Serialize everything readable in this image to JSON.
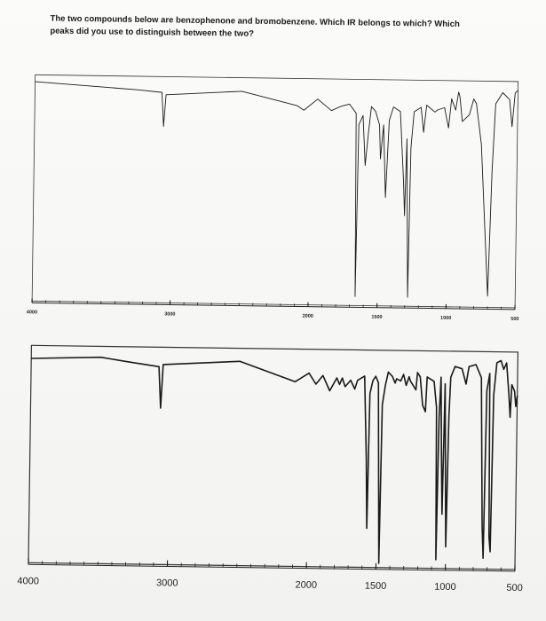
{
  "question": {
    "line1": "The two compounds below are benzophenone and bromobenzene. Which IR belongs to which? Which",
    "line2": "peaks did you use to distinguish between the two?"
  },
  "chart_data": [
    {
      "type": "line",
      "xlabel": "",
      "ylabel": "",
      "xlim": [
        4000,
        500
      ],
      "ylim": [
        0,
        100
      ],
      "x_ticks": [
        4000,
        3000,
        2000,
        1500,
        1000,
        500
      ],
      "x_tick_labels": [
        "4000",
        "3000",
        "2000",
        "1500",
        "1000",
        "500"
      ],
      "series": [
        {
          "points": [
            [
              4000,
              97
            ],
            [
              3500,
              95
            ],
            [
              3250,
              94
            ],
            [
              3080,
              93
            ],
            [
              3065,
              78
            ],
            [
              3050,
              92
            ],
            [
              2500,
              94
            ],
            [
              2100,
              88
            ],
            [
              2050,
              86
            ],
            [
              1950,
              91
            ],
            [
              1850,
              86
            ],
            [
              1780,
              88
            ],
            [
              1720,
              89
            ],
            [
              1670,
              85
            ],
            [
              1660,
              4
            ],
            [
              1650,
              80
            ],
            [
              1620,
              84
            ],
            [
              1600,
              62
            ],
            [
              1580,
              76
            ],
            [
              1560,
              88
            ],
            [
              1530,
              86
            ],
            [
              1500,
              80
            ],
            [
              1490,
              65
            ],
            [
              1470,
              80
            ],
            [
              1450,
              48
            ],
            [
              1430,
              82
            ],
            [
              1400,
              88
            ],
            [
              1350,
              86
            ],
            [
              1320,
              55
            ],
            [
              1310,
              40
            ],
            [
              1300,
              74
            ],
            [
              1280,
              4
            ],
            [
              1270,
              70
            ],
            [
              1250,
              86
            ],
            [
              1200,
              88
            ],
            [
              1180,
              77
            ],
            [
              1160,
              89
            ],
            [
              1100,
              86
            ],
            [
              1080,
              87
            ],
            [
              1030,
              88
            ],
            [
              1000,
              79
            ],
            [
              980,
              92
            ],
            [
              950,
              87
            ],
            [
              930,
              95
            ],
            [
              920,
              93
            ],
            [
              900,
              82
            ],
            [
              850,
              85
            ],
            [
              820,
              92
            ],
            [
              800,
              90
            ],
            [
              760,
              72
            ],
            [
              700,
              5
            ],
            [
              680,
              60
            ],
            [
              660,
              90
            ],
            [
              610,
              95
            ],
            [
              560,
              92
            ],
            [
              540,
              80
            ],
            [
              520,
              95
            ],
            [
              500,
              96
            ]
          ]
        }
      ]
    },
    {
      "type": "line",
      "xlabel": "",
      "ylabel": "",
      "xlim": [
        4000,
        500
      ],
      "ylim": [
        0,
        100
      ],
      "x_ticks": [
        4000,
        3000,
        2000,
        1500,
        1000,
        500
      ],
      "x_tick_labels": [
        "4000",
        "3000",
        "2000",
        "1500",
        "1000",
        "500"
      ],
      "series": [
        {
          "points": [
            [
              4000,
              94
            ],
            [
              3500,
              95
            ],
            [
              3300,
              93
            ],
            [
              3080,
              91
            ],
            [
              3065,
              72
            ],
            [
              3050,
              92
            ],
            [
              2500,
              94
            ],
            [
              2100,
              85
            ],
            [
              2000,
              89
            ],
            [
              1950,
              84
            ],
            [
              1900,
              88
            ],
            [
              1850,
              81
            ],
            [
              1800,
              87
            ],
            [
              1780,
              84
            ],
            [
              1760,
              87
            ],
            [
              1740,
              83
            ],
            [
              1700,
              86
            ],
            [
              1670,
              82
            ],
            [
              1650,
              86
            ],
            [
              1600,
              88
            ],
            [
              1580,
              50
            ],
            [
              1570,
              18
            ],
            [
              1560,
              80
            ],
            [
              1540,
              86
            ],
            [
              1520,
              88
            ],
            [
              1500,
              85
            ],
            [
              1480,
              2
            ],
            [
              1470,
              75
            ],
            [
              1450,
              84
            ],
            [
              1430,
              90
            ],
            [
              1400,
              88
            ],
            [
              1380,
              85
            ],
            [
              1370,
              87
            ],
            [
              1340,
              86
            ],
            [
              1320,
              89
            ],
            [
              1300,
              84
            ],
            [
              1280,
              88
            ],
            [
              1270,
              86
            ],
            [
              1250,
              84
            ],
            [
              1230,
              82
            ],
            [
              1220,
              90
            ],
            [
              1200,
              88
            ],
            [
              1180,
              75
            ],
            [
              1160,
              72
            ],
            [
              1150,
              88
            ],
            [
              1100,
              86
            ],
            [
              1080,
              74
            ],
            [
              1070,
              4
            ],
            [
              1060,
              70
            ],
            [
              1050,
              88
            ],
            [
              1040,
              52
            ],
            [
              1030,
              25
            ],
            [
              1020,
              85
            ],
            [
              1000,
              10
            ],
            [
              990,
              70
            ],
            [
              980,
              88
            ],
            [
              950,
              93
            ],
            [
              900,
              92
            ],
            [
              870,
              85
            ],
            [
              850,
              93
            ],
            [
              800,
              94
            ],
            [
              760,
              88
            ],
            [
              740,
              20
            ],
            [
              730,
              5
            ],
            [
              720,
              82
            ],
            [
              700,
              90
            ],
            [
              690,
              15
            ],
            [
              680,
              8
            ],
            [
              670,
              80
            ],
            [
              650,
              95
            ],
            [
              620,
              96
            ],
            [
              600,
              92
            ],
            [
              580,
              95
            ],
            [
              560,
              80
            ],
            [
              550,
              70
            ],
            [
              540,
              85
            ],
            [
              520,
              82
            ],
            [
              510,
              75
            ],
            [
              500,
              80
            ]
          ]
        }
      ]
    }
  ]
}
